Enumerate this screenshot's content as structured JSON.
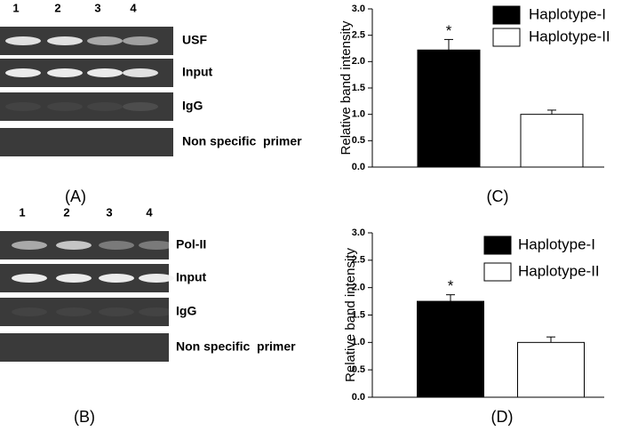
{
  "gels": [
    {
      "label": "(A)",
      "lanes": [
        1,
        2,
        3,
        4
      ],
      "rows": [
        "USF",
        "Input",
        "IgG",
        "Non specific  primer"
      ]
    },
    {
      "label": "(B)",
      "lanes": [
        1,
        2,
        3,
        4
      ],
      "rows": [
        "Pol-II",
        "Input",
        "IgG",
        "Non specific  primer"
      ]
    }
  ],
  "chart_data": [
    {
      "type": "bar",
      "panel_label": "(C)",
      "ylabel": "Relative band intensity",
      "annotation": "*",
      "ylim": [
        0,
        3
      ],
      "yticks": [
        {
          "value": 0,
          "label": "0.0"
        },
        0.5,
        {
          "value": 1,
          "label": "1.0"
        },
        1.5,
        {
          "value": 2,
          "label": "2.0"
        },
        2.5,
        {
          "value": 3,
          "label": "3.0"
        }
      ],
      "series": [
        {
          "name": "Haplotype-I",
          "color": "#000000",
          "values": [
            2.22
          ],
          "errors": [
            0.2
          ]
        },
        {
          "name": "Haplotype-II",
          "color": "#ffffff",
          "values": [
            1.0
          ],
          "errors": [
            0.08
          ]
        }
      ]
    },
    {
      "type": "bar",
      "panel_label": "(D)",
      "ylabel": "Relative band intensity",
      "annotation": "*",
      "ylim": [
        0,
        3
      ],
      "yticks": [
        {
          "value": 0,
          "label": "0.0"
        },
        0.5,
        {
          "value": 1,
          "label": "1.0"
        },
        1.5,
        {
          "value": 2,
          "label": "2.0"
        },
        2.5,
        {
          "value": 3,
          "label": "3.0"
        }
      ],
      "series": [
        {
          "name": "Haplotype-I",
          "color": "#000000",
          "values": [
            1.75
          ],
          "errors": [
            0.12
          ]
        },
        {
          "name": "Haplotype-II",
          "color": "#ffffff",
          "values": [
            1.0
          ],
          "errors": [
            0.1
          ]
        }
      ]
    }
  ]
}
